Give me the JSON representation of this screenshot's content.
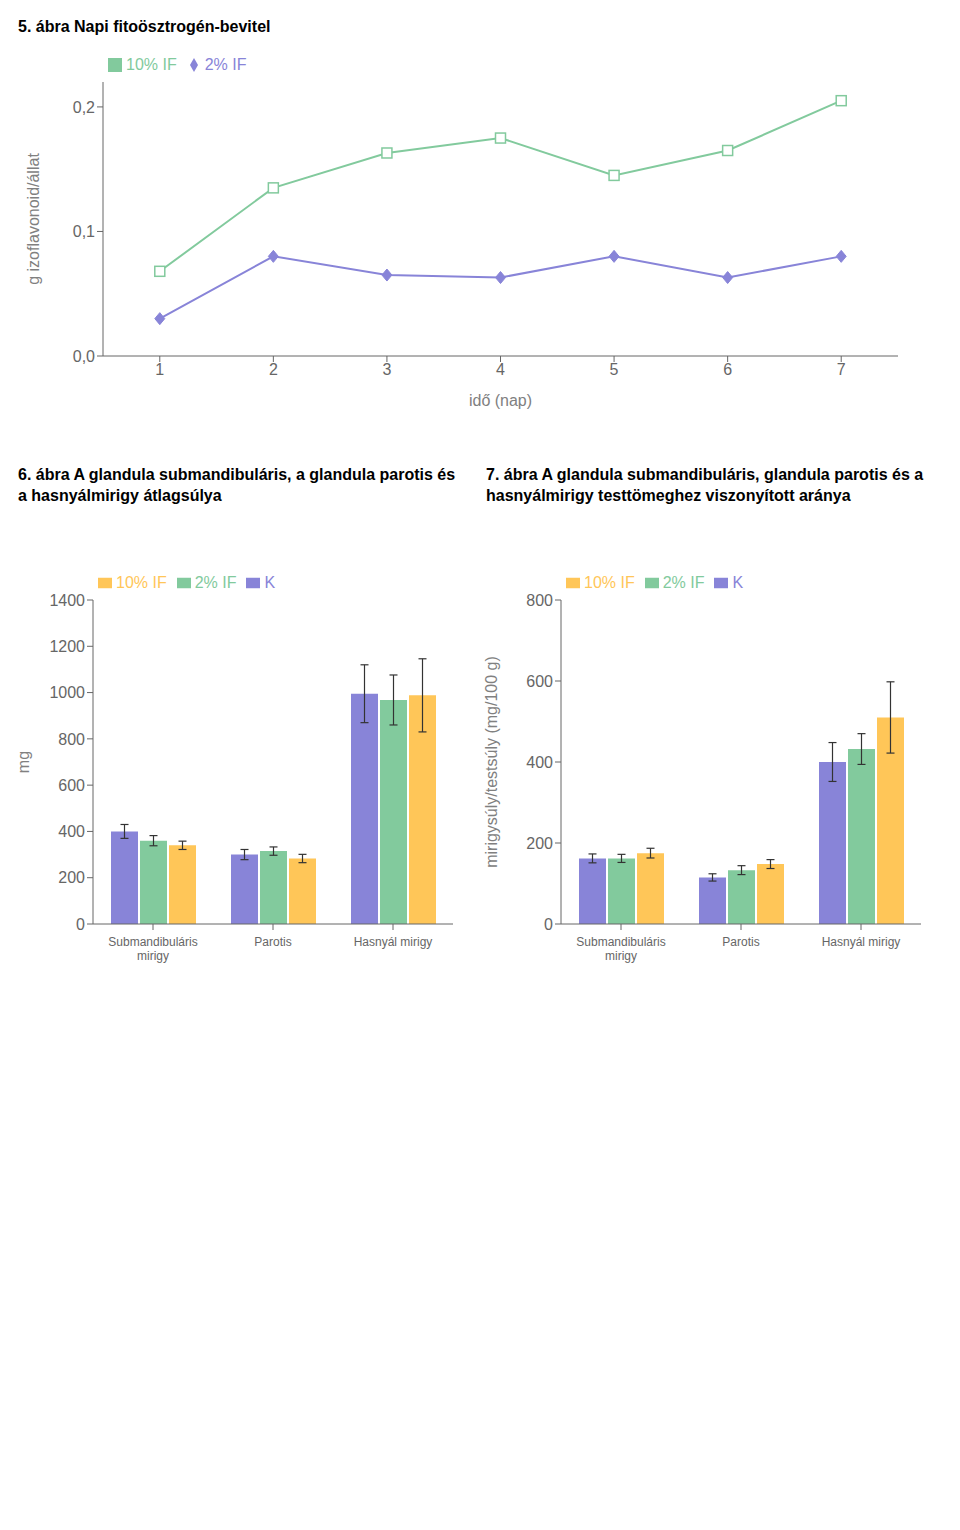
{
  "chart_data": [
    {
      "type": "line",
      "title": "5. ábra Napi fitoösztrogén-bevitel",
      "xlabel": "idő (nap)",
      "ylabel": "g izoflavonoid/állat",
      "x": [
        1,
        2,
        3,
        4,
        5,
        6,
        7
      ],
      "series": [
        {
          "name": "2% IF",
          "color": "#8884d8",
          "marker": "diamond",
          "values": [
            0.03,
            0.08,
            0.065,
            0.063,
            0.08,
            0.063,
            0.08
          ]
        },
        {
          "name": "10% IF",
          "color": "#82ca9d",
          "marker": "square",
          "values": [
            0.068,
            0.135,
            0.163,
            0.175,
            0.145,
            0.165,
            0.205
          ]
        }
      ],
      "xlim": [
        0.5,
        7.5
      ],
      "xticks": [
        1,
        2,
        3,
        4,
        5,
        6,
        7
      ],
      "ylim": [
        0.0,
        0.22
      ],
      "yticks": [
        {
          "value": 0.0,
          "label": "0,0"
        },
        {
          "value": 0.1,
          "label": "0,1"
        },
        {
          "value": 0.2,
          "label": "0,2"
        }
      ],
      "legend": "upper left",
      "grid": false
    },
    {
      "type": "bar",
      "title": "6. ábra A glandula submandibuláris, a glandula parotis és a hasnyálmirigy átlagsúlya",
      "ylabel": "mg",
      "categories": [
        "Submandibuláris\nmirigy",
        "Parotis",
        "Hasnyál mirigy"
      ],
      "series": [
        {
          "name": "K",
          "color": "#8884d8",
          "values": [
            400,
            300,
            995
          ],
          "errors": [
            30,
            22,
            125
          ]
        },
        {
          "name": "2% IF",
          "color": "#82ca9d",
          "values": [
            360,
            315,
            968
          ],
          "errors": [
            22,
            18,
            108
          ]
        },
        {
          "name": "10% IF",
          "color": "#ffc658",
          "values": [
            340,
            283,
            988
          ],
          "errors": [
            18,
            18,
            158
          ]
        }
      ],
      "ylim": [
        0,
        1400
      ],
      "yticks": [
        0,
        200,
        400,
        600,
        800,
        1000,
        1200,
        1400
      ],
      "legend": "upper left",
      "grid": false
    },
    {
      "type": "bar",
      "title": "7. ábra A glandula submandibuláris, glandula parotis és a hasnyálmirigy testtömeghez viszonyított aránya",
      "ylabel": "mirigysúly/testsúly (mg/100 g)",
      "categories": [
        "Submandibuláris\nmirigy",
        "Parotis",
        "Hasnyál mirigy"
      ],
      "series": [
        {
          "name": "K",
          "color": "#8884d8",
          "values": [
            162,
            115,
            400
          ],
          "errors": [
            11,
            9,
            48
          ]
        },
        {
          "name": "2% IF",
          "color": "#82ca9d",
          "values": [
            162,
            133,
            432
          ],
          "errors": [
            10,
            11,
            38
          ]
        },
        {
          "name": "10% IF",
          "color": "#ffc658",
          "values": [
            175,
            148,
            510
          ],
          "errors": [
            12,
            11,
            88
          ]
        }
      ],
      "ylim": [
        0,
        800
      ],
      "yticks": [
        0,
        200,
        400,
        600,
        800
      ],
      "legend": "upper left",
      "grid": false
    }
  ]
}
